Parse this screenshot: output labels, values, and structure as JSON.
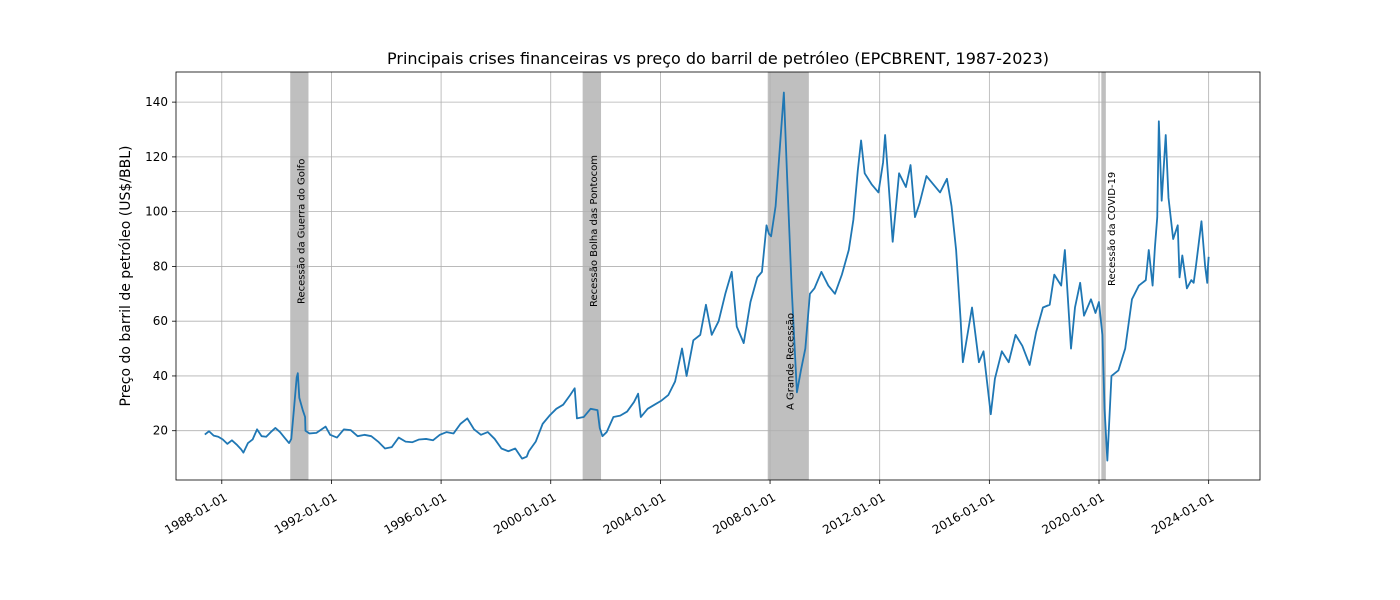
{
  "chart_data": {
    "type": "line",
    "title": "Principais crises financeiras vs preço do barril de petróleo (EPCBRENT, 1987-2023)",
    "xlabel": "",
    "ylabel": "Preço do barril de petróleo (US$/BBL)",
    "x_type": "date",
    "xlim": [
      "1986-05-01",
      "2025-11-15"
    ],
    "ylim": [
      2,
      151
    ],
    "x_ticks": [
      "1988-01-01",
      "1992-01-01",
      "1996-01-01",
      "2000-01-01",
      "2004-01-01",
      "2008-01-01",
      "2012-01-01",
      "2016-01-01",
      "2020-01-01",
      "2024-01-01"
    ],
    "y_ticks": [
      20,
      40,
      60,
      80,
      100,
      120,
      140
    ],
    "grid": true,
    "line_color": "#1f77b4",
    "band_color": "#bfbfbf",
    "recessions": [
      {
        "label": "Recessão da Guerra do Golfo",
        "start": "1990-07-01",
        "end": "1991-03-01"
      },
      {
        "label": "Recessão Bolha das Pontocom",
        "start": "2001-03-01",
        "end": "2001-11-01"
      },
      {
        "label": "A Grande Recessão",
        "start": "2007-12-01",
        "end": "2009-06-01"
      },
      {
        "label": "Recessão da COVID-19",
        "start": "2020-02-01",
        "end": "2020-04-01"
      }
    ],
    "series": [
      {
        "points": [
          [
            "1987-05-20",
            18.6
          ],
          [
            "1987-07-15",
            19.8
          ],
          [
            "1987-09-15",
            18.2
          ],
          [
            "1987-11-15",
            17.8
          ],
          [
            "1988-01-15",
            16.8
          ],
          [
            "1988-03-15",
            15.2
          ],
          [
            "1988-05-15",
            16.5
          ],
          [
            "1988-07-15",
            15.0
          ],
          [
            "1988-09-15",
            13.2
          ],
          [
            "1988-10-15",
            12.0
          ],
          [
            "1988-12-15",
            15.5
          ],
          [
            "1989-02-15",
            16.8
          ],
          [
            "1989-04-15",
            20.5
          ],
          [
            "1989-06-15",
            18.0
          ],
          [
            "1989-08-15",
            17.8
          ],
          [
            "1989-10-15",
            19.5
          ],
          [
            "1989-12-15",
            21.0
          ],
          [
            "1990-02-15",
            19.5
          ],
          [
            "1990-04-15",
            17.5
          ],
          [
            "1990-06-15",
            15.5
          ],
          [
            "1990-07-15",
            17.0
          ],
          [
            "1990-08-20",
            28.0
          ],
          [
            "1990-09-25",
            39.5
          ],
          [
            "1990-10-10",
            41.0
          ],
          [
            "1990-10-30",
            32.0
          ],
          [
            "1990-12-15",
            27.5
          ],
          [
            "1991-01-15",
            25.0
          ],
          [
            "1991-01-20",
            20.0
          ],
          [
            "1991-03-15",
            19.0
          ],
          [
            "1991-06-15",
            19.2
          ],
          [
            "1991-10-15",
            21.5
          ],
          [
            "1991-12-15",
            18.5
          ],
          [
            "1992-03-15",
            17.5
          ],
          [
            "1992-06-15",
            20.5
          ],
          [
            "1992-09-15",
            20.2
          ],
          [
            "1992-12-15",
            18.0
          ],
          [
            "1993-03-15",
            18.5
          ],
          [
            "1993-06-15",
            18.0
          ],
          [
            "1993-09-15",
            16.0
          ],
          [
            "1993-12-15",
            13.5
          ],
          [
            "1994-03-15",
            14.0
          ],
          [
            "1994-06-15",
            17.5
          ],
          [
            "1994-09-15",
            16.0
          ],
          [
            "1994-12-15",
            15.8
          ],
          [
            "1995-03-15",
            16.8
          ],
          [
            "1995-06-15",
            17.0
          ],
          [
            "1995-09-15",
            16.5
          ],
          [
            "1995-12-15",
            18.5
          ],
          [
            "1996-03-15",
            19.5
          ],
          [
            "1996-06-15",
            19.0
          ],
          [
            "1996-09-15",
            22.5
          ],
          [
            "1996-12-15",
            24.5
          ],
          [
            "1997-03-15",
            20.5
          ],
          [
            "1997-06-15",
            18.5
          ],
          [
            "1997-09-15",
            19.5
          ],
          [
            "1997-12-15",
            17.0
          ],
          [
            "1998-03-15",
            13.5
          ],
          [
            "1998-06-15",
            12.5
          ],
          [
            "1998-09-15",
            13.5
          ],
          [
            "1998-12-15",
            9.8
          ],
          [
            "1999-02-15",
            10.5
          ],
          [
            "1999-03-15",
            12.5
          ],
          [
            "1999-06-15",
            16.0
          ],
          [
            "1999-09-15",
            22.5
          ],
          [
            "1999-12-15",
            25.5
          ],
          [
            "2000-03-15",
            28.0
          ],
          [
            "2000-06-15",
            29.5
          ],
          [
            "2000-09-15",
            33.0
          ],
          [
            "2000-11-15",
            35.5
          ],
          [
            "2000-12-15",
            24.5
          ],
          [
            "2001-03-15",
            25.0
          ],
          [
            "2001-06-15",
            28.0
          ],
          [
            "2001-09-15",
            27.5
          ],
          [
            "2001-10-15",
            21.0
          ],
          [
            "2001-11-20",
            18.0
          ],
          [
            "2002-01-15",
            19.5
          ],
          [
            "2002-04-15",
            25.0
          ],
          [
            "2002-07-15",
            25.5
          ],
          [
            "2002-10-15",
            27.0
          ],
          [
            "2003-01-15",
            30.5
          ],
          [
            "2003-03-10",
            33.5
          ],
          [
            "2003-04-15",
            25.0
          ],
          [
            "2003-07-15",
            28.0
          ],
          [
            "2003-10-15",
            29.5
          ],
          [
            "2004-01-15",
            31.0
          ],
          [
            "2004-04-15",
            33.0
          ],
          [
            "2004-07-15",
            38.0
          ],
          [
            "2004-10-15",
            50.0
          ],
          [
            "2004-12-15",
            40.0
          ],
          [
            "2005-03-15",
            53.0
          ],
          [
            "2005-06-15",
            55.0
          ],
          [
            "2005-08-30",
            66.0
          ],
          [
            "2005-11-15",
            55.0
          ],
          [
            "2006-02-15",
            60.0
          ],
          [
            "2006-05-15",
            70.0
          ],
          [
            "2006-08-08",
            78.0
          ],
          [
            "2006-10-15",
            58.0
          ],
          [
            "2007-01-15",
            52.0
          ],
          [
            "2007-04-15",
            67.0
          ],
          [
            "2007-07-15",
            76.0
          ],
          [
            "2007-09-15",
            78.0
          ],
          [
            "2007-11-15",
            95.0
          ],
          [
            "2007-12-15",
            92.0
          ],
          [
            "2008-01-15",
            91.0
          ],
          [
            "2008-03-15",
            102.0
          ],
          [
            "2008-05-15",
            125.0
          ],
          [
            "2008-07-03",
            143.5
          ],
          [
            "2008-08-15",
            113.0
          ],
          [
            "2008-10-15",
            72.0
          ],
          [
            "2008-12-24",
            34.0
          ],
          [
            "2009-02-15",
            42.0
          ],
          [
            "2009-04-15",
            50.0
          ],
          [
            "2009-06-15",
            70.0
          ],
          [
            "2009-08-15",
            72.0
          ],
          [
            "2009-11-15",
            78.0
          ],
          [
            "2010-02-15",
            73.0
          ],
          [
            "2010-05-15",
            70.0
          ],
          [
            "2010-08-15",
            77.0
          ],
          [
            "2010-11-15",
            86.0
          ],
          [
            "2011-01-15",
            97.0
          ],
          [
            "2011-03-15",
            115.0
          ],
          [
            "2011-04-28",
            126.0
          ],
          [
            "2011-06-15",
            114.0
          ],
          [
            "2011-09-15",
            110.0
          ],
          [
            "2011-12-15",
            107.0
          ],
          [
            "2012-02-15",
            118.0
          ],
          [
            "2012-03-13",
            128.0
          ],
          [
            "2012-06-22",
            89.0
          ],
          [
            "2012-09-15",
            114.0
          ],
          [
            "2012-12-15",
            109.0
          ],
          [
            "2013-02-15",
            117.0
          ],
          [
            "2013-04-15",
            98.0
          ],
          [
            "2013-06-15",
            103.0
          ],
          [
            "2013-09-15",
            113.0
          ],
          [
            "2013-12-15",
            110.0
          ],
          [
            "2014-03-15",
            107.0
          ],
          [
            "2014-06-15",
            112.0
          ],
          [
            "2014-08-15",
            102.0
          ],
          [
            "2014-10-15",
            86.0
          ],
          [
            "2014-12-15",
            60.0
          ],
          [
            "2015-01-13",
            45.0
          ],
          [
            "2015-05-15",
            65.0
          ],
          [
            "2015-08-15",
            45.0
          ],
          [
            "2015-10-15",
            49.0
          ],
          [
            "2016-01-20",
            26.0
          ],
          [
            "2016-03-15",
            39.0
          ],
          [
            "2016-06-15",
            49.0
          ],
          [
            "2016-09-15",
            45.0
          ],
          [
            "2016-12-15",
            55.0
          ],
          [
            "2017-03-15",
            51.0
          ],
          [
            "2017-06-21",
            44.0
          ],
          [
            "2017-09-15",
            56.0
          ],
          [
            "2017-12-15",
            65.0
          ],
          [
            "2018-03-15",
            66.0
          ],
          [
            "2018-05-15",
            77.0
          ],
          [
            "2018-08-15",
            73.0
          ],
          [
            "2018-10-03",
            86.0
          ],
          [
            "2018-12-24",
            50.0
          ],
          [
            "2019-02-15",
            65.0
          ],
          [
            "2019-04-25",
            74.0
          ],
          [
            "2019-06-15",
            62.0
          ],
          [
            "2019-09-16",
            68.0
          ],
          [
            "2019-11-15",
            63.0
          ],
          [
            "2019-12-31",
            67.0
          ],
          [
            "2020-02-15",
            55.0
          ],
          [
            "2020-03-15",
            28.0
          ],
          [
            "2020-04-21",
            9.1
          ],
          [
            "2020-06-15",
            40.0
          ],
          [
            "2020-09-15",
            42.0
          ],
          [
            "2020-12-15",
            50.0
          ],
          [
            "2021-03-15",
            68.0
          ],
          [
            "2021-06-15",
            73.0
          ],
          [
            "2021-09-15",
            75.0
          ],
          [
            "2021-10-25",
            86.0
          ],
          [
            "2021-12-15",
            73.0
          ],
          [
            "2022-01-15",
            87.0
          ],
          [
            "2022-02-15",
            98.0
          ],
          [
            "2022-03-08",
            133.0
          ],
          [
            "2022-04-15",
            104.0
          ],
          [
            "2022-06-08",
            128.0
          ],
          [
            "2022-07-15",
            105.0
          ],
          [
            "2022-09-15",
            90.0
          ],
          [
            "2022-11-15",
            95.0
          ],
          [
            "2022-12-09",
            76.0
          ],
          [
            "2023-01-15",
            84.0
          ],
          [
            "2023-03-17",
            72.0
          ],
          [
            "2023-05-15",
            75.0
          ],
          [
            "2023-06-15",
            74.0
          ],
          [
            "2023-07-15",
            80.0
          ],
          [
            "2023-09-27",
            96.5
          ],
          [
            "2023-11-15",
            80.0
          ],
          [
            "2023-12-13",
            74.0
          ],
          [
            "2023-12-20",
            79.0
          ],
          [
            "2024-01-01",
            83.5
          ]
        ]
      }
    ]
  }
}
